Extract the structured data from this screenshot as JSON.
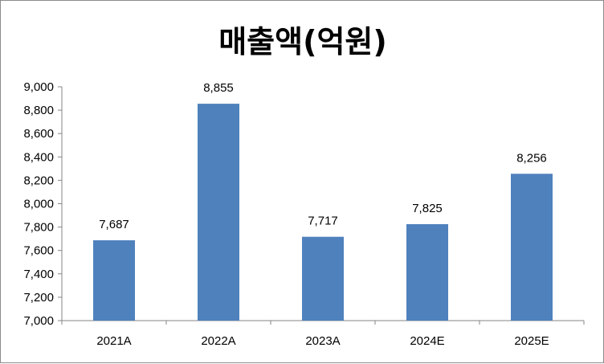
{
  "chart_data": {
    "type": "bar",
    "title": "매출액(억원)",
    "categories": [
      "2021A",
      "2022A",
      "2023A",
      "2024E",
      "2025E"
    ],
    "values": [
      7687,
      8855,
      7717,
      7825,
      8256
    ],
    "value_labels": [
      "7,687",
      "8,855",
      "7,717",
      "7,825",
      "8,256"
    ],
    "ylim": [
      7000,
      9000
    ],
    "yticks": [
      7000,
      7200,
      7400,
      7600,
      7800,
      8000,
      8200,
      8400,
      8600,
      8800,
      9000
    ],
    "ytick_labels": [
      "7,000",
      "7,200",
      "7,400",
      "7,600",
      "7,800",
      "8,000",
      "8,200",
      "8,400",
      "8,600",
      "8,800",
      "9,000"
    ],
    "grid": false,
    "legend": "none",
    "bar_color": "#4f81bd"
  }
}
